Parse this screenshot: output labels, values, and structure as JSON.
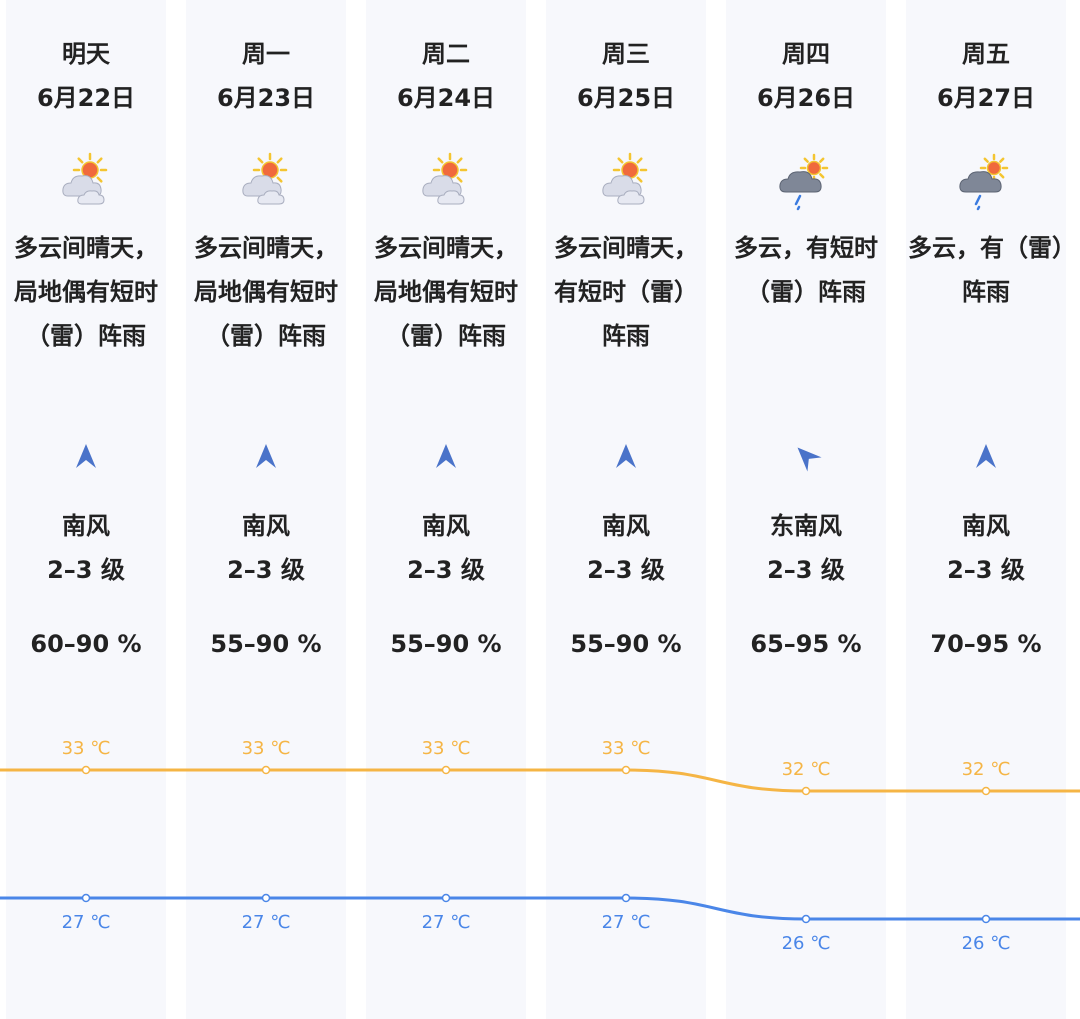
{
  "colors": {
    "high_line": "#f5b545",
    "low_line": "#4a86e8",
    "column_bg": "#f7f8fc",
    "wind_arrow": "#4a73c9",
    "text": "#222222"
  },
  "days": [
    {
      "name": "明天",
      "date": "6月22日",
      "icon": "partly-cloudy-icon",
      "weather": "多云间晴天，局地偶有短时（雷）阵雨",
      "wind_dir_icon": "wind-arrow-north-icon",
      "wind_rotation": 0,
      "wind_dir": "南风",
      "wind_level": "2–3 级",
      "humidity": "60–90 %",
      "high": "33 ℃",
      "low": "27 ℃"
    },
    {
      "name": "周一",
      "date": "6月23日",
      "icon": "partly-cloudy-icon",
      "weather": "多云间晴天，局地偶有短时（雷）阵雨",
      "wind_dir_icon": "wind-arrow-north-icon",
      "wind_rotation": 0,
      "wind_dir": "南风",
      "wind_level": "2–3 级",
      "humidity": "55–90 %",
      "high": "33 ℃",
      "low": "27 ℃"
    },
    {
      "name": "周二",
      "date": "6月24日",
      "icon": "partly-cloudy-icon",
      "weather": "多云间晴天，局地偶有短时（雷）阵雨",
      "wind_dir_icon": "wind-arrow-north-icon",
      "wind_rotation": 0,
      "wind_dir": "南风",
      "wind_level": "2–3 级",
      "humidity": "55–90 %",
      "high": "33 ℃",
      "low": "27 ℃"
    },
    {
      "name": "周三",
      "date": "6月25日",
      "icon": "partly-cloudy-icon",
      "weather": "多云间晴天，有短时（雷）阵雨",
      "wind_dir_icon": "wind-arrow-north-icon",
      "wind_rotation": 0,
      "wind_dir": "南风",
      "wind_level": "2–3 级",
      "humidity": "55–90 %",
      "high": "33 ℃",
      "low": "27 ℃"
    },
    {
      "name": "周四",
      "date": "6月26日",
      "icon": "cloudy-rain-icon",
      "weather": "多云，有短时（雷）阵雨",
      "wind_dir_icon": "wind-arrow-northwest-icon",
      "wind_rotation": -45,
      "wind_dir": "东南风",
      "wind_level": "2–3 级",
      "humidity": "65–95 %",
      "high": "32 ℃",
      "low": "26 ℃"
    },
    {
      "name": "周五",
      "date": "6月27日",
      "icon": "cloudy-rain-icon",
      "weather": "多云，有（雷）阵雨",
      "wind_dir_icon": "wind-arrow-north-icon",
      "wind_rotation": 0,
      "wind_dir": "南风",
      "wind_level": "2–3 级",
      "humidity": "70–95 %",
      "high": "32 ℃",
      "low": "26 ℃"
    }
  ],
  "chart_data": {
    "type": "line",
    "categories": [
      "明天",
      "周一",
      "周二",
      "周三",
      "周四",
      "周五"
    ],
    "series": [
      {
        "values": [
          33,
          33,
          33,
          33,
          32,
          32
        ],
        "color": "#f5b545"
      },
      {
        "values": [
          27,
          27,
          27,
          27,
          26,
          26
        ],
        "color": "#4a86e8"
      }
    ],
    "unit": "℃",
    "grid": false
  }
}
